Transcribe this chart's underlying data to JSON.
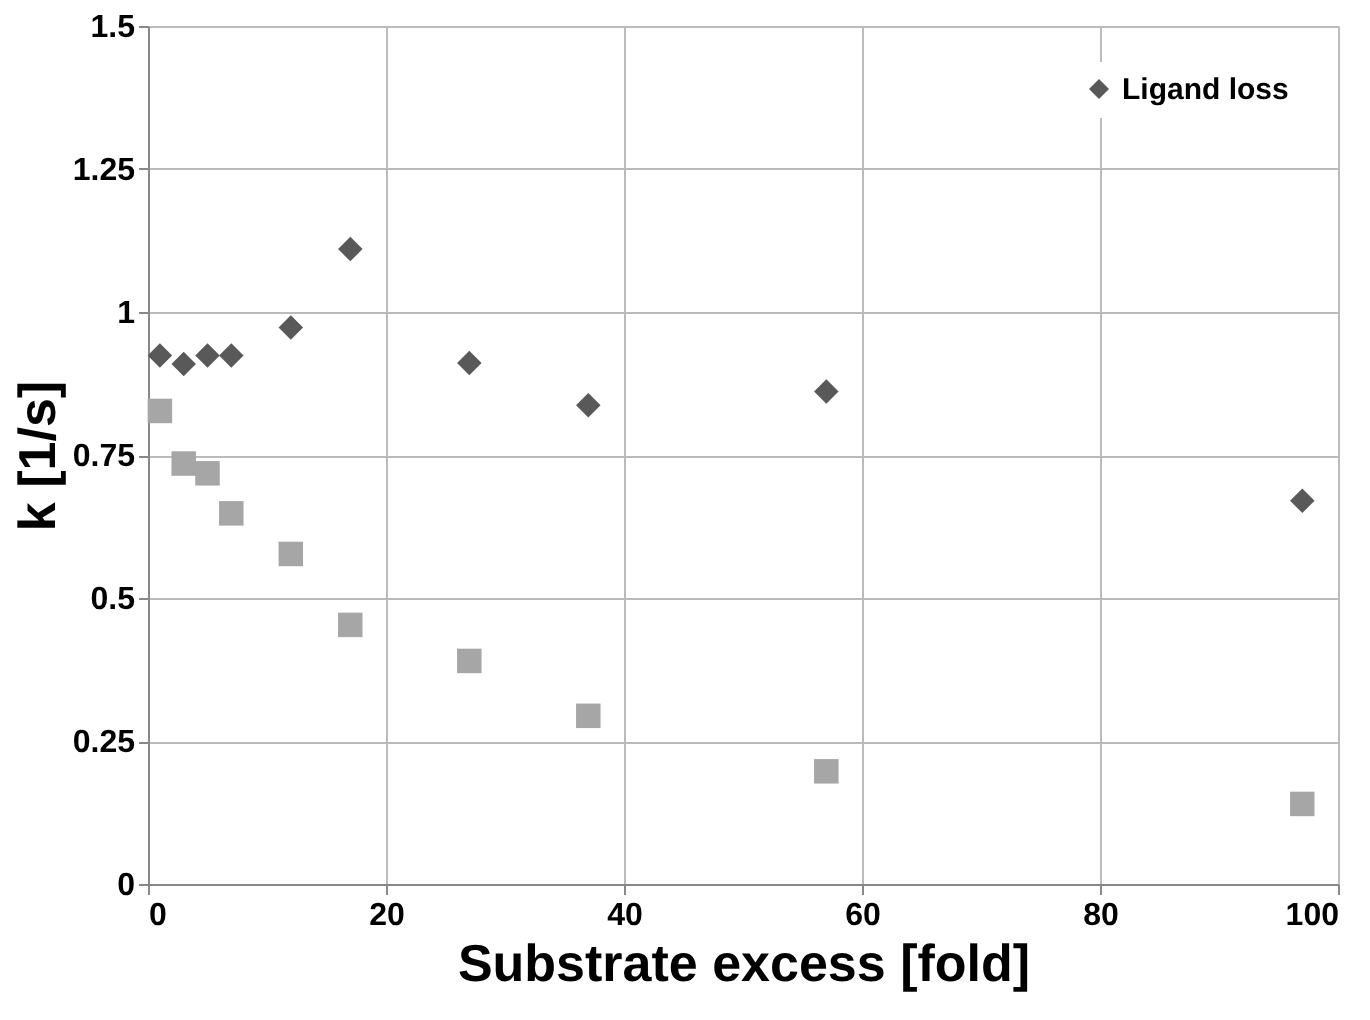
{
  "chart_data": {
    "type": "scatter",
    "xlabel": "Substrate excess [fold]",
    "ylabel": "k [1/s]",
    "x": [
      1,
      3,
      5,
      7,
      12,
      17,
      27,
      37,
      57,
      97
    ],
    "series": [
      {
        "name": "Ligand loss",
        "color": "#595959",
        "marker": "diamond",
        "values": [
          0.924,
          0.909,
          0.924,
          0.924,
          0.973,
          1.11,
          0.911,
          0.837,
          0.861,
          0.67
        ]
      },
      {
        "color": "#a6a6a6",
        "marker": "square",
        "values": [
          0.827,
          0.735,
          0.718,
          0.648,
          0.577,
          0.453,
          0.39,
          0.294,
          0.197,
          0.14
        ]
      }
    ],
    "xlim": [
      0,
      100
    ],
    "xticks": [
      0,
      20,
      40,
      60,
      80,
      100
    ],
    "ylim": [
      0,
      1.5
    ],
    "yticks": [
      0,
      0.25,
      0.5,
      0.75,
      1,
      1.25,
      1.5
    ],
    "grid": true,
    "legend": "top right"
  }
}
